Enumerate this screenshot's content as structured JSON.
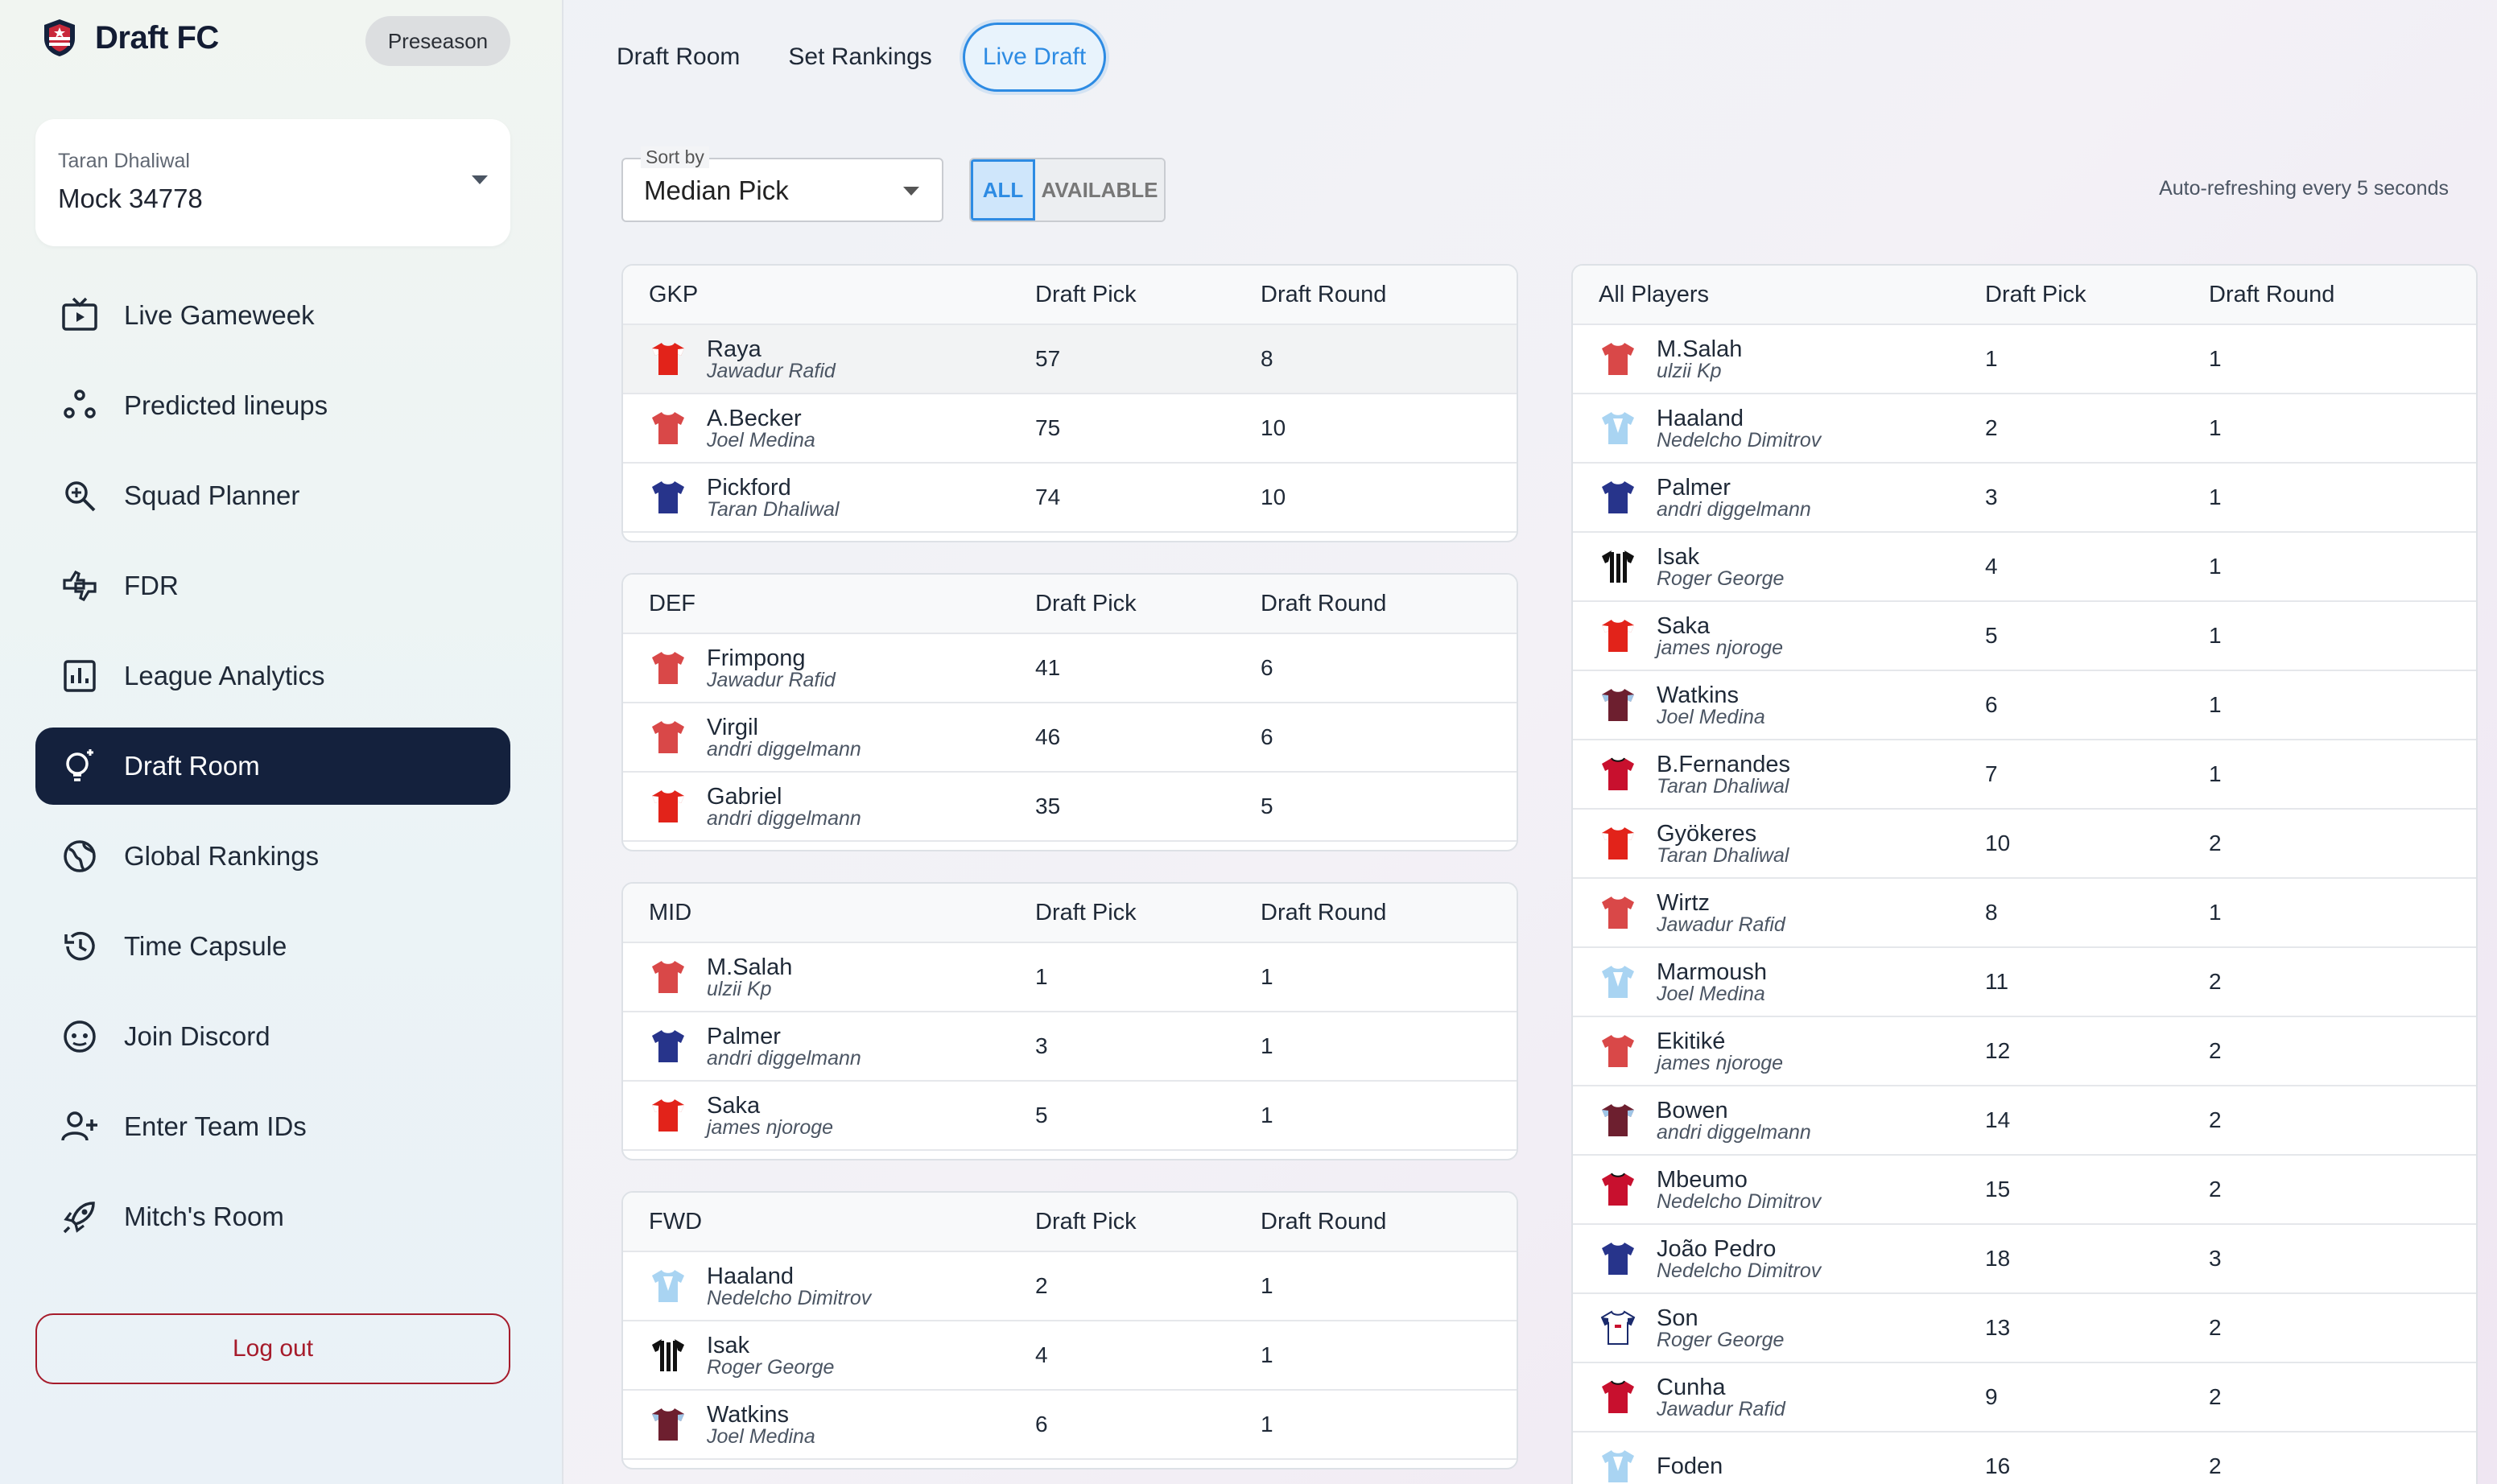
{
  "brand": {
    "name": "Draft FC",
    "season": "Preseason"
  },
  "team": {
    "user": "Taran Dhaliwal",
    "name": "Mock 34778"
  },
  "nav": [
    {
      "label": "Live Gameweek",
      "icon": "tv-icon"
    },
    {
      "label": "Predicted lineups",
      "icon": "lineup-icon"
    },
    {
      "label": "Squad Planner",
      "icon": "magnify-icon"
    },
    {
      "label": "FDR",
      "icon": "thumbs-icon"
    },
    {
      "label": "League Analytics",
      "icon": "bar-chart-icon"
    },
    {
      "label": "Draft Room",
      "icon": "lightbulb-icon",
      "active": true
    },
    {
      "label": "Global Rankings",
      "icon": "globe-icon"
    },
    {
      "label": "Time Capsule",
      "icon": "history-icon"
    },
    {
      "label": "Join Discord",
      "icon": "discord-icon"
    },
    {
      "label": "Enter Team IDs",
      "icon": "add-user-icon"
    },
    {
      "label": "Mitch's Room",
      "icon": "rocket-icon"
    }
  ],
  "logout_label": "Log out",
  "tabs": [
    {
      "label": "Draft Room"
    },
    {
      "label": "Set Rankings"
    },
    {
      "label": "Live Draft",
      "active": true
    }
  ],
  "sort": {
    "label": "Sort by",
    "value": "Median Pick"
  },
  "filter": {
    "all": "ALL",
    "available": "AVAILABLE"
  },
  "refresh_text": "Auto-refreshing every 5 seconds",
  "columns": {
    "pick": "Draft Pick",
    "round": "Draft Round"
  },
  "colors": {
    "accent": "#2d8be3",
    "nav_active": "#14213d",
    "logout": "#a61b2b"
  },
  "positions": [
    {
      "title": "GKP",
      "players": [
        {
          "name": "Raya",
          "owner": "Jawadur Rafid",
          "pick": "57",
          "round": "8",
          "shirt": "red-white",
          "hl": true
        },
        {
          "name": "A.Becker",
          "owner": "Joel Medina",
          "pick": "75",
          "round": "10",
          "shirt": "red"
        },
        {
          "name": "Pickford",
          "owner": "Taran Dhaliwal",
          "pick": "74",
          "round": "10",
          "shirt": "navy"
        }
      ]
    },
    {
      "title": "DEF",
      "players": [
        {
          "name": "Frimpong",
          "owner": "Jawadur Rafid",
          "pick": "41",
          "round": "6",
          "shirt": "red"
        },
        {
          "name": "Virgil",
          "owner": "andri diggelmann",
          "pick": "46",
          "round": "6",
          "shirt": "red"
        },
        {
          "name": "Gabriel",
          "owner": "andri diggelmann",
          "pick": "35",
          "round": "5",
          "shirt": "red-white"
        }
      ]
    },
    {
      "title": "MID",
      "players": [
        {
          "name": "M.Salah",
          "owner": "ulzii Kp",
          "pick": "1",
          "round": "1",
          "shirt": "red"
        },
        {
          "name": "Palmer",
          "owner": "andri diggelmann",
          "pick": "3",
          "round": "1",
          "shirt": "navy"
        },
        {
          "name": "Saka",
          "owner": "james njoroge",
          "pick": "5",
          "round": "1",
          "shirt": "red-white"
        }
      ]
    },
    {
      "title": "FWD",
      "players": [
        {
          "name": "Haaland",
          "owner": "Nedelcho Dimitrov",
          "pick": "2",
          "round": "1",
          "shirt": "sky"
        },
        {
          "name": "Isak",
          "owner": "Roger George",
          "pick": "4",
          "round": "1",
          "shirt": "stripes"
        },
        {
          "name": "Watkins",
          "owner": "Joel Medina",
          "pick": "6",
          "round": "1",
          "shirt": "claret"
        }
      ]
    }
  ],
  "all_players": {
    "title": "All Players",
    "players": [
      {
        "name": "M.Salah",
        "owner": "ulzii Kp",
        "pick": "1",
        "round": "1",
        "shirt": "red"
      },
      {
        "name": "Haaland",
        "owner": "Nedelcho Dimitrov",
        "pick": "2",
        "round": "1",
        "shirt": "sky"
      },
      {
        "name": "Palmer",
        "owner": "andri diggelmann",
        "pick": "3",
        "round": "1",
        "shirt": "navy"
      },
      {
        "name": "Isak",
        "owner": "Roger George",
        "pick": "4",
        "round": "1",
        "shirt": "stripes"
      },
      {
        "name": "Saka",
        "owner": "james njoroge",
        "pick": "5",
        "round": "1",
        "shirt": "red-white"
      },
      {
        "name": "Watkins",
        "owner": "Joel Medina",
        "pick": "6",
        "round": "1",
        "shirt": "claret"
      },
      {
        "name": "B.Fernandes",
        "owner": "Taran Dhaliwal",
        "pick": "7",
        "round": "1",
        "shirt": "darkred"
      },
      {
        "name": "Gyökeres",
        "owner": "Taran Dhaliwal",
        "pick": "10",
        "round": "2",
        "shirt": "red-white"
      },
      {
        "name": "Wirtz",
        "owner": "Jawadur Rafid",
        "pick": "8",
        "round": "1",
        "shirt": "red"
      },
      {
        "name": "Marmoush",
        "owner": "Joel Medina",
        "pick": "11",
        "round": "2",
        "shirt": "sky"
      },
      {
        "name": "Ekitiké",
        "owner": "james njoroge",
        "pick": "12",
        "round": "2",
        "shirt": "red"
      },
      {
        "name": "Bowen",
        "owner": "andri diggelmann",
        "pick": "14",
        "round": "2",
        "shirt": "claret"
      },
      {
        "name": "Mbeumo",
        "owner": "Nedelcho Dimitrov",
        "pick": "15",
        "round": "2",
        "shirt": "darkred"
      },
      {
        "name": "João Pedro",
        "owner": "Nedelcho Dimitrov",
        "pick": "18",
        "round": "3",
        "shirt": "navy"
      },
      {
        "name": "Son",
        "owner": "Roger George",
        "pick": "13",
        "round": "2",
        "shirt": "white-navy"
      },
      {
        "name": "Cunha",
        "owner": "Jawadur Rafid",
        "pick": "9",
        "round": "2",
        "shirt": "darkred"
      },
      {
        "name": "Foden",
        "owner": "",
        "pick": "16",
        "round": "2",
        "shirt": "sky"
      }
    ]
  }
}
